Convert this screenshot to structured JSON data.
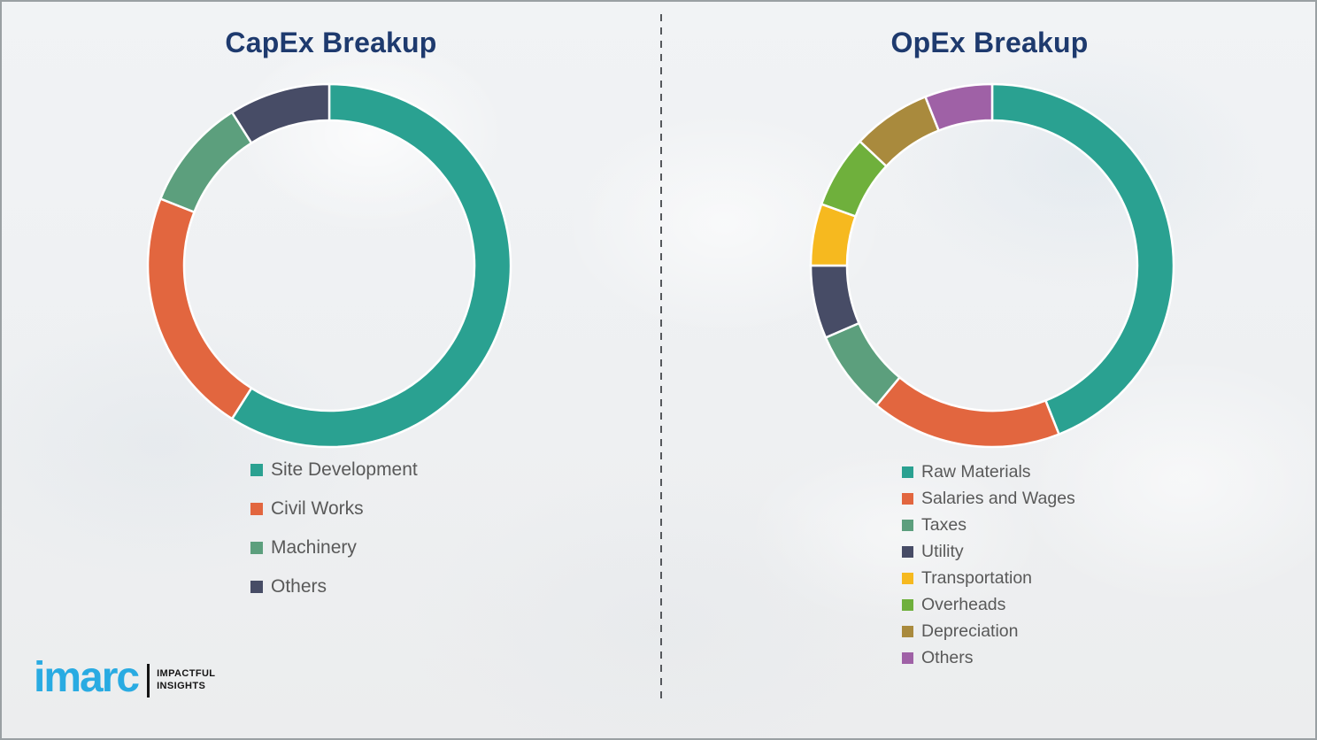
{
  "theme": {
    "title_color": "#1E3A6E",
    "legend_text_color": "#595959",
    "divider_color": "#55585C",
    "logo_color": "#29ABE2",
    "background_color": "#EFF1F2"
  },
  "chart_data": [
    {
      "type": "pie",
      "subtype": "donut",
      "title": "CapEx Breakup",
      "categories": [
        "Site Development",
        "Civil Works",
        "Machinery",
        "Others"
      ],
      "values": [
        59,
        22,
        10,
        9
      ],
      "colors": [
        "#2AA191",
        "#E2663F",
        "#5C9F7D",
        "#474C66"
      ],
      "start_angle_deg": 0,
      "direction": "clockwise",
      "legend_position": "below-chart-left"
    },
    {
      "type": "pie",
      "subtype": "donut",
      "title": "OpEx Breakup",
      "categories": [
        "Raw Materials",
        "Salaries and Wages",
        "Taxes",
        "Utility",
        "Transportation",
        "Overheads",
        "Depreciation",
        "Others"
      ],
      "values": [
        44,
        17,
        7.5,
        6.5,
        5.5,
        6.5,
        7,
        6
      ],
      "colors": [
        "#2AA191",
        "#E2663F",
        "#5C9F7D",
        "#474C66",
        "#F6B91F",
        "#6FB03C",
        "#A98A3D",
        "#9F61A6"
      ],
      "start_angle_deg": 0,
      "direction": "clockwise",
      "legend_position": "below-chart-left"
    }
  ],
  "branding": {
    "logo_text": "imarc",
    "tagline": [
      "IMPACTFUL",
      "INSIGHTS"
    ]
  }
}
